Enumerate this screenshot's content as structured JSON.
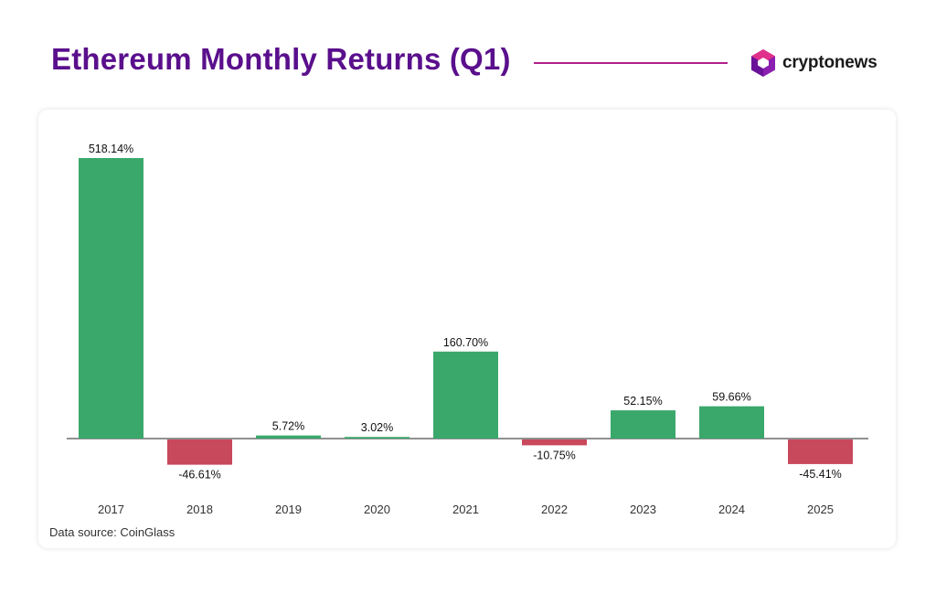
{
  "header": {
    "title": "Ethereum Monthly Returns (Q1)",
    "brand_name": "cryptonews",
    "brand_icon": "cryptonews-logo-icon"
  },
  "source": "Data source: CoinGlass",
  "colors": {
    "title": "#5a0f8c",
    "positive": "#3aa86b",
    "negative": "#c8485c",
    "rule": "#b0208c"
  },
  "chart_data": {
    "type": "bar",
    "title": "Ethereum Monthly Returns (Q1)",
    "categories": [
      "2017",
      "2018",
      "2019",
      "2020",
      "2021",
      "2022",
      "2023",
      "2024",
      "2025"
    ],
    "values": [
      518.14,
      -46.61,
      5.72,
      3.02,
      160.7,
      -10.75,
      52.15,
      59.66,
      -45.41
    ],
    "labels": [
      "518.14%",
      "-46.61%",
      "5.72%",
      "3.02%",
      "160.70%",
      "-10.75%",
      "52.15%",
      "59.66%",
      "-45.41%"
    ],
    "unit": "%",
    "xlabel": "",
    "ylabel": "",
    "grid": false,
    "legend": "none"
  }
}
